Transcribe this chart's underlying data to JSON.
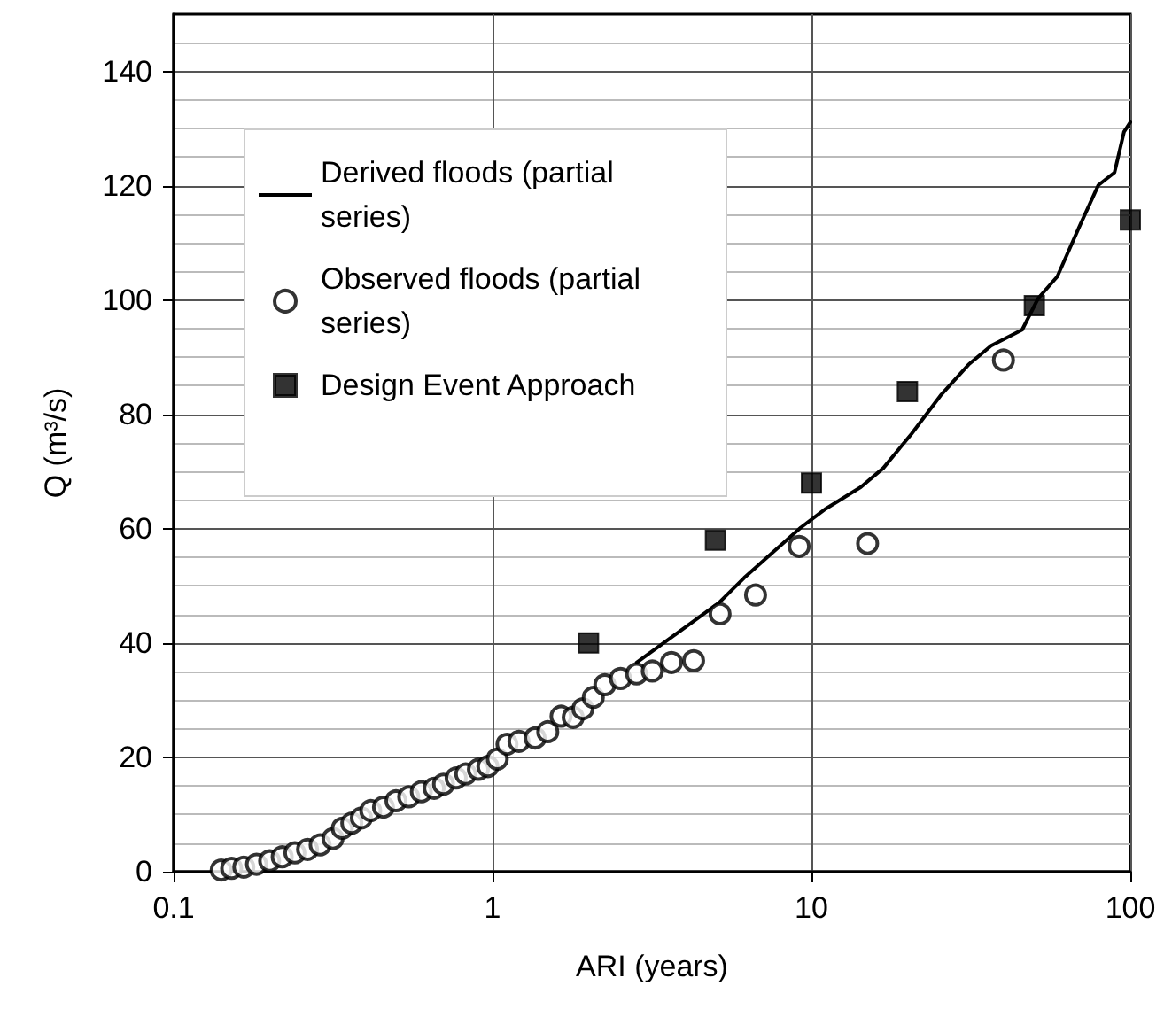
{
  "chart_data": {
    "type": "line",
    "xlabel": "ARI (years)",
    "ylabel": "Q (m³/s)",
    "log": "x",
    "xlim": [
      0.1,
      100
    ],
    "xticks": [
      0.1,
      1,
      10,
      100
    ],
    "ylim": [
      0,
      150
    ],
    "yticks": [
      0,
      20,
      40,
      60,
      80,
      100,
      120,
      140
    ],
    "grid": true,
    "legend": "top left",
    "series": [
      {
        "name": "Derived floods (partial series)",
        "marker": "none",
        "line_style": "solid",
        "color": "#000000",
        "x": [
          2.83,
          5.12,
          6.15,
          9.26,
          11.1,
          14.3,
          16.8,
          20.6,
          25.4,
          31.1,
          36.6,
          45.8,
          51.4,
          59.0,
          69.3,
          79.4,
          89.2,
          95.5,
          100
        ],
        "values": [
          36.6,
          47.0,
          51.4,
          60.2,
          63.5,
          67.3,
          70.6,
          76.6,
          83.3,
          88.7,
          92.0,
          94.8,
          100.3,
          104.1,
          112.9,
          120.1,
          122.3,
          129.4,
          131.1
        ]
      },
      {
        "name": "Observed floods (partial series)",
        "type": "scatter",
        "marker": "circle",
        "color": "#000000",
        "x": [
          0.141,
          0.152,
          0.166,
          0.182,
          0.2,
          0.219,
          0.24,
          0.263,
          0.288,
          0.316,
          0.338,
          0.362,
          0.388,
          0.415,
          0.455,
          0.498,
          0.546,
          0.598,
          0.656,
          0.702,
          0.769,
          0.824,
          0.903,
          0.967,
          1.035,
          1.11,
          1.21,
          1.36,
          1.49,
          1.64,
          1.79,
          1.92,
          2.07,
          2.25,
          2.52,
          2.83,
          3.17,
          3.64,
          4.27,
          5.17,
          6.68,
          9.15,
          15.0,
          40.0
        ],
        "values": [
          0.3,
          0.6,
          0.8,
          1.3,
          1.9,
          2.6,
          3.3,
          3.9,
          4.7,
          5.8,
          7.6,
          8.5,
          9.4,
          10.7,
          11.3,
          12.4,
          13.1,
          14.0,
          14.6,
          15.3,
          16.4,
          17.1,
          17.9,
          18.4,
          19.7,
          22.3,
          22.8,
          23.4,
          24.5,
          27.2,
          27.0,
          28.5,
          30.5,
          32.7,
          33.8,
          34.6,
          35.1,
          36.6,
          36.9,
          45.1,
          48.4,
          56.9,
          57.4,
          89.5
        ]
      },
      {
        "name": "Design Event Approach",
        "type": "scatter",
        "marker": "square",
        "color": "#000000",
        "x": [
          2,
          5,
          10,
          20,
          50,
          100
        ],
        "values": [
          40,
          58,
          68,
          84,
          99,
          114
        ]
      }
    ]
  }
}
